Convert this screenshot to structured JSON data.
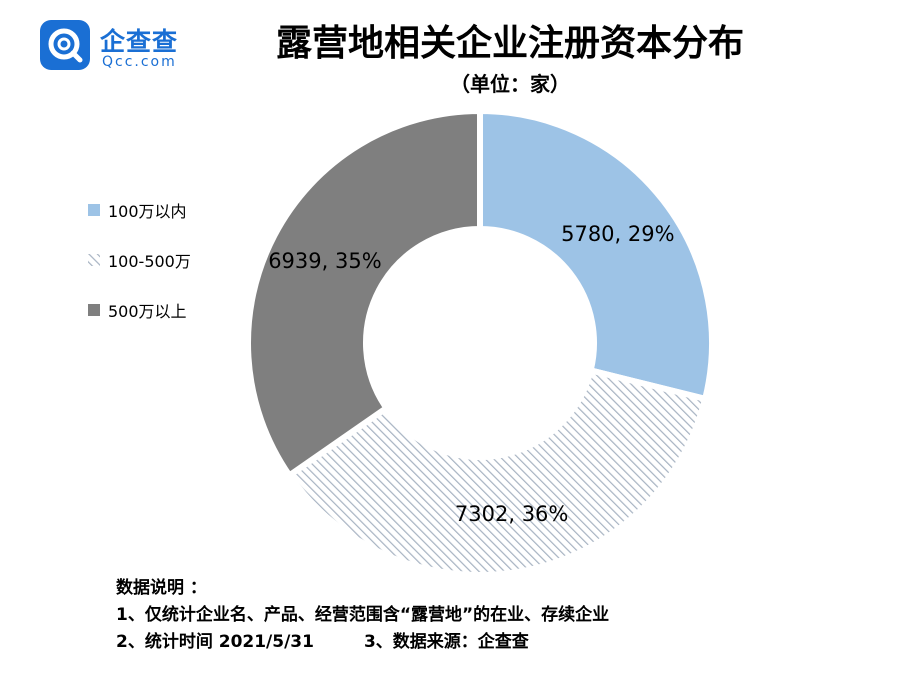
{
  "logo": {
    "name_cn": "企查查",
    "name_en": "Qcc.com",
    "brand_color": "#1a6fd4"
  },
  "title": "露营地相关企业注册资本分布",
  "subtitle": "（单位：家）",
  "chart_data": {
    "type": "pie",
    "donut": true,
    "categories": [
      "100万以内",
      "100-500万",
      "500万以上"
    ],
    "values": [
      5780,
      7302,
      6939
    ],
    "percents": [
      29,
      36,
      35
    ],
    "data_labels": [
      "5780, 29%",
      "7302, 36%",
      "6939, 35%"
    ],
    "colors": [
      "#9dc3e6",
      "#a7b3c2",
      "#7f7f7f"
    ],
    "fills": [
      "solid",
      "hatched",
      "solid"
    ],
    "legend_position": "left"
  },
  "notes": {
    "heading": "数据说明 ：",
    "line1": "1、仅统计企业名、产品、经营范围含“露营地”的在业、存续企业",
    "line2a": "2、统计时间 2021/5/31",
    "line2b": "3、数据来源：企查查"
  }
}
